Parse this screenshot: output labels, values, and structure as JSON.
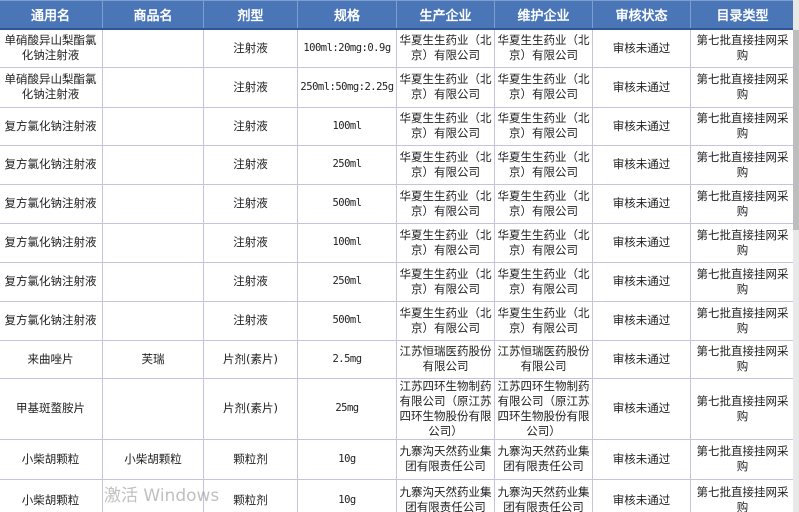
{
  "headers": [
    "通用名",
    "商品名",
    "剂型",
    "规格",
    "生产企业",
    "维护企业",
    "审核状态",
    "目录类型"
  ],
  "rows": [
    [
      "单硝酸异山梨酯氯化钠注射液",
      "",
      "注射液",
      "100ml:20mg:0.9g",
      "华夏生生药业（北京）有限公司",
      "华夏生生药业（北京）有限公司",
      "审核未通过",
      "第七批直接挂网采购"
    ],
    [
      "单硝酸异山梨酯氯化钠注射液",
      "",
      "注射液",
      "250ml:50mg:2.25g",
      "华夏生生药业（北京）有限公司",
      "华夏生生药业（北京）有限公司",
      "审核未通过",
      "第七批直接挂网采购"
    ],
    [
      "复方氯化钠注射液",
      "",
      "注射液",
      "100ml",
      "华夏生生药业（北京）有限公司",
      "华夏生生药业（北京）有限公司",
      "审核未通过",
      "第七批直接挂网采购"
    ],
    [
      "复方氯化钠注射液",
      "",
      "注射液",
      "250ml",
      "华夏生生药业（北京）有限公司",
      "华夏生生药业（北京）有限公司",
      "审核未通过",
      "第七批直接挂网采购"
    ],
    [
      "复方氯化钠注射液",
      "",
      "注射液",
      "500ml",
      "华夏生生药业（北京）有限公司",
      "华夏生生药业（北京）有限公司",
      "审核未通过",
      "第七批直接挂网采购"
    ],
    [
      "复方氯化钠注射液",
      "",
      "注射液",
      "100ml",
      "华夏生生药业（北京）有限公司",
      "华夏生生药业（北京）有限公司",
      "审核未通过",
      "第七批直接挂网采购"
    ],
    [
      "复方氯化钠注射液",
      "",
      "注射液",
      "250ml",
      "华夏生生药业（北京）有限公司",
      "华夏生生药业（北京）有限公司",
      "审核未通过",
      "第七批直接挂网采购"
    ],
    [
      "复方氯化钠注射液",
      "",
      "注射液",
      "500ml",
      "华夏生生药业（北京）有限公司",
      "华夏生生药业（北京）有限公司",
      "审核未通过",
      "第七批直接挂网采购"
    ],
    [
      "来曲唑片",
      "芙瑞",
      "片剂(素片)",
      "2.5mg",
      "江苏恒瑞医药股份有限公司",
      "江苏恒瑞医药股份有限公司",
      "审核未通过",
      "第七批直接挂网采购"
    ],
    [
      "甲基斑蝥胺片",
      "",
      "片剂(素片)",
      "25mg",
      "江苏四环生物制药有限公司（原江苏四环生物股份有限公司）",
      "江苏四环生物制药有限公司（原江苏四环生物股份有限公司）",
      "审核未通过",
      "第七批直接挂网采购"
    ],
    [
      "小柴胡颗粒",
      "小柴胡颗粒",
      "颗粒剂",
      "10g",
      "九寨沟天然药业集团有限责任公司",
      "九寨沟天然药业集团有限责任公司",
      "审核未通过",
      "第七批直接挂网采购"
    ],
    [
      "小柴胡颗粒",
      "",
      "颗粒剂",
      "10g",
      "九寨沟天然药业集团有限责任公司",
      "九寨沟天然药业集团有限责任公司",
      "审核未通过",
      "第七批直接挂网采购"
    ]
  ],
  "watermark": "激活 Windows",
  "colors": {
    "header_bg": "#4a76b8",
    "border": "#c4c4de"
  }
}
